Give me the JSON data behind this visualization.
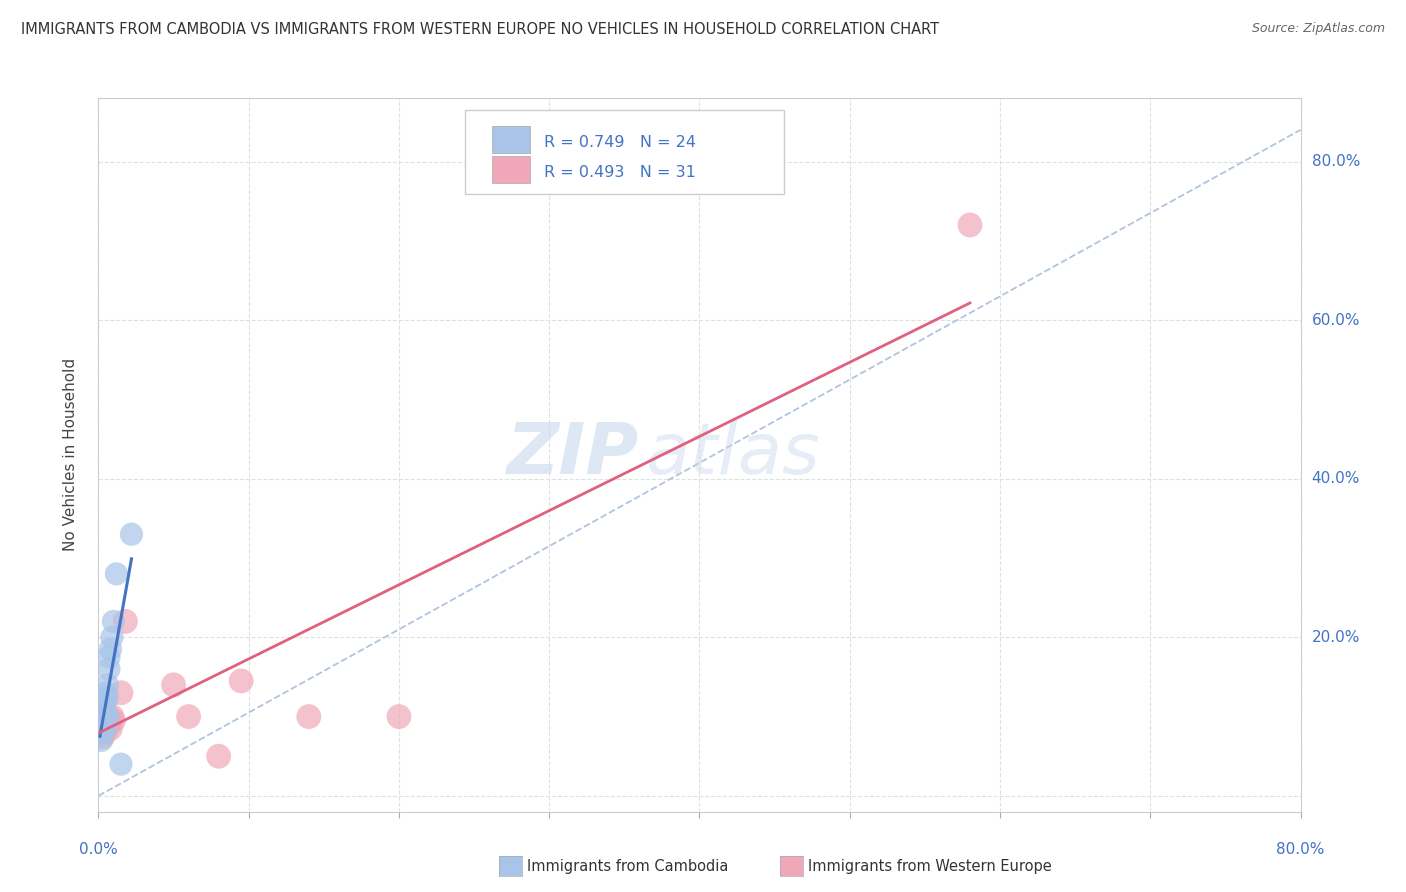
{
  "title": "IMMIGRANTS FROM CAMBODIA VS IMMIGRANTS FROM WESTERN EUROPE NO VEHICLES IN HOUSEHOLD CORRELATION CHART",
  "source": "Source: ZipAtlas.com",
  "ylabel": "No Vehicles in Household",
  "ytick_values": [
    0.0,
    0.2,
    0.4,
    0.6,
    0.8
  ],
  "xlim": [
    0.0,
    0.8
  ],
  "ylim": [
    -0.02,
    0.88
  ],
  "legend_r1": "R = 0.749",
  "legend_n1": "N = 24",
  "legend_r2": "R = 0.493",
  "legend_n2": "N = 31",
  "color_cambodia": "#a8c4e8",
  "color_western_europe": "#f0a8b8",
  "color_trend1": "#4472c4",
  "color_trend2": "#e06080",
  "color_axis_labels": "#4472c4",
  "watermark_zip": "ZIP",
  "watermark_atlas": "atlas",
  "cambodia_x": [
    0.001,
    0.002,
    0.002,
    0.003,
    0.003,
    0.003,
    0.004,
    0.004,
    0.004,
    0.005,
    0.005,
    0.005,
    0.005,
    0.006,
    0.006,
    0.006,
    0.007,
    0.007,
    0.008,
    0.009,
    0.01,
    0.012,
    0.015,
    0.022
  ],
  "cambodia_y": [
    0.08,
    0.07,
    0.09,
    0.08,
    0.085,
    0.09,
    0.1,
    0.11,
    0.095,
    0.12,
    0.13,
    0.1,
    0.085,
    0.14,
    0.125,
    0.1,
    0.16,
    0.175,
    0.185,
    0.2,
    0.22,
    0.28,
    0.04,
    0.33
  ],
  "western_europe_x": [
    0.001,
    0.001,
    0.002,
    0.002,
    0.002,
    0.003,
    0.003,
    0.003,
    0.003,
    0.004,
    0.004,
    0.004,
    0.005,
    0.005,
    0.005,
    0.006,
    0.006,
    0.007,
    0.007,
    0.008,
    0.009,
    0.01,
    0.015,
    0.018,
    0.05,
    0.06,
    0.08,
    0.095,
    0.14,
    0.2,
    0.58
  ],
  "western_europe_y": [
    0.08,
    0.09,
    0.085,
    0.095,
    0.1,
    0.075,
    0.085,
    0.09,
    0.1,
    0.09,
    0.08,
    0.095,
    0.09,
    0.085,
    0.1,
    0.095,
    0.1,
    0.09,
    0.095,
    0.085,
    0.1,
    0.095,
    0.13,
    0.22,
    0.14,
    0.1,
    0.05,
    0.145,
    0.1,
    0.1,
    0.72
  ],
  "dash_line_x": [
    0.0,
    0.8
  ],
  "dash_line_y": [
    0.0,
    0.84
  ]
}
